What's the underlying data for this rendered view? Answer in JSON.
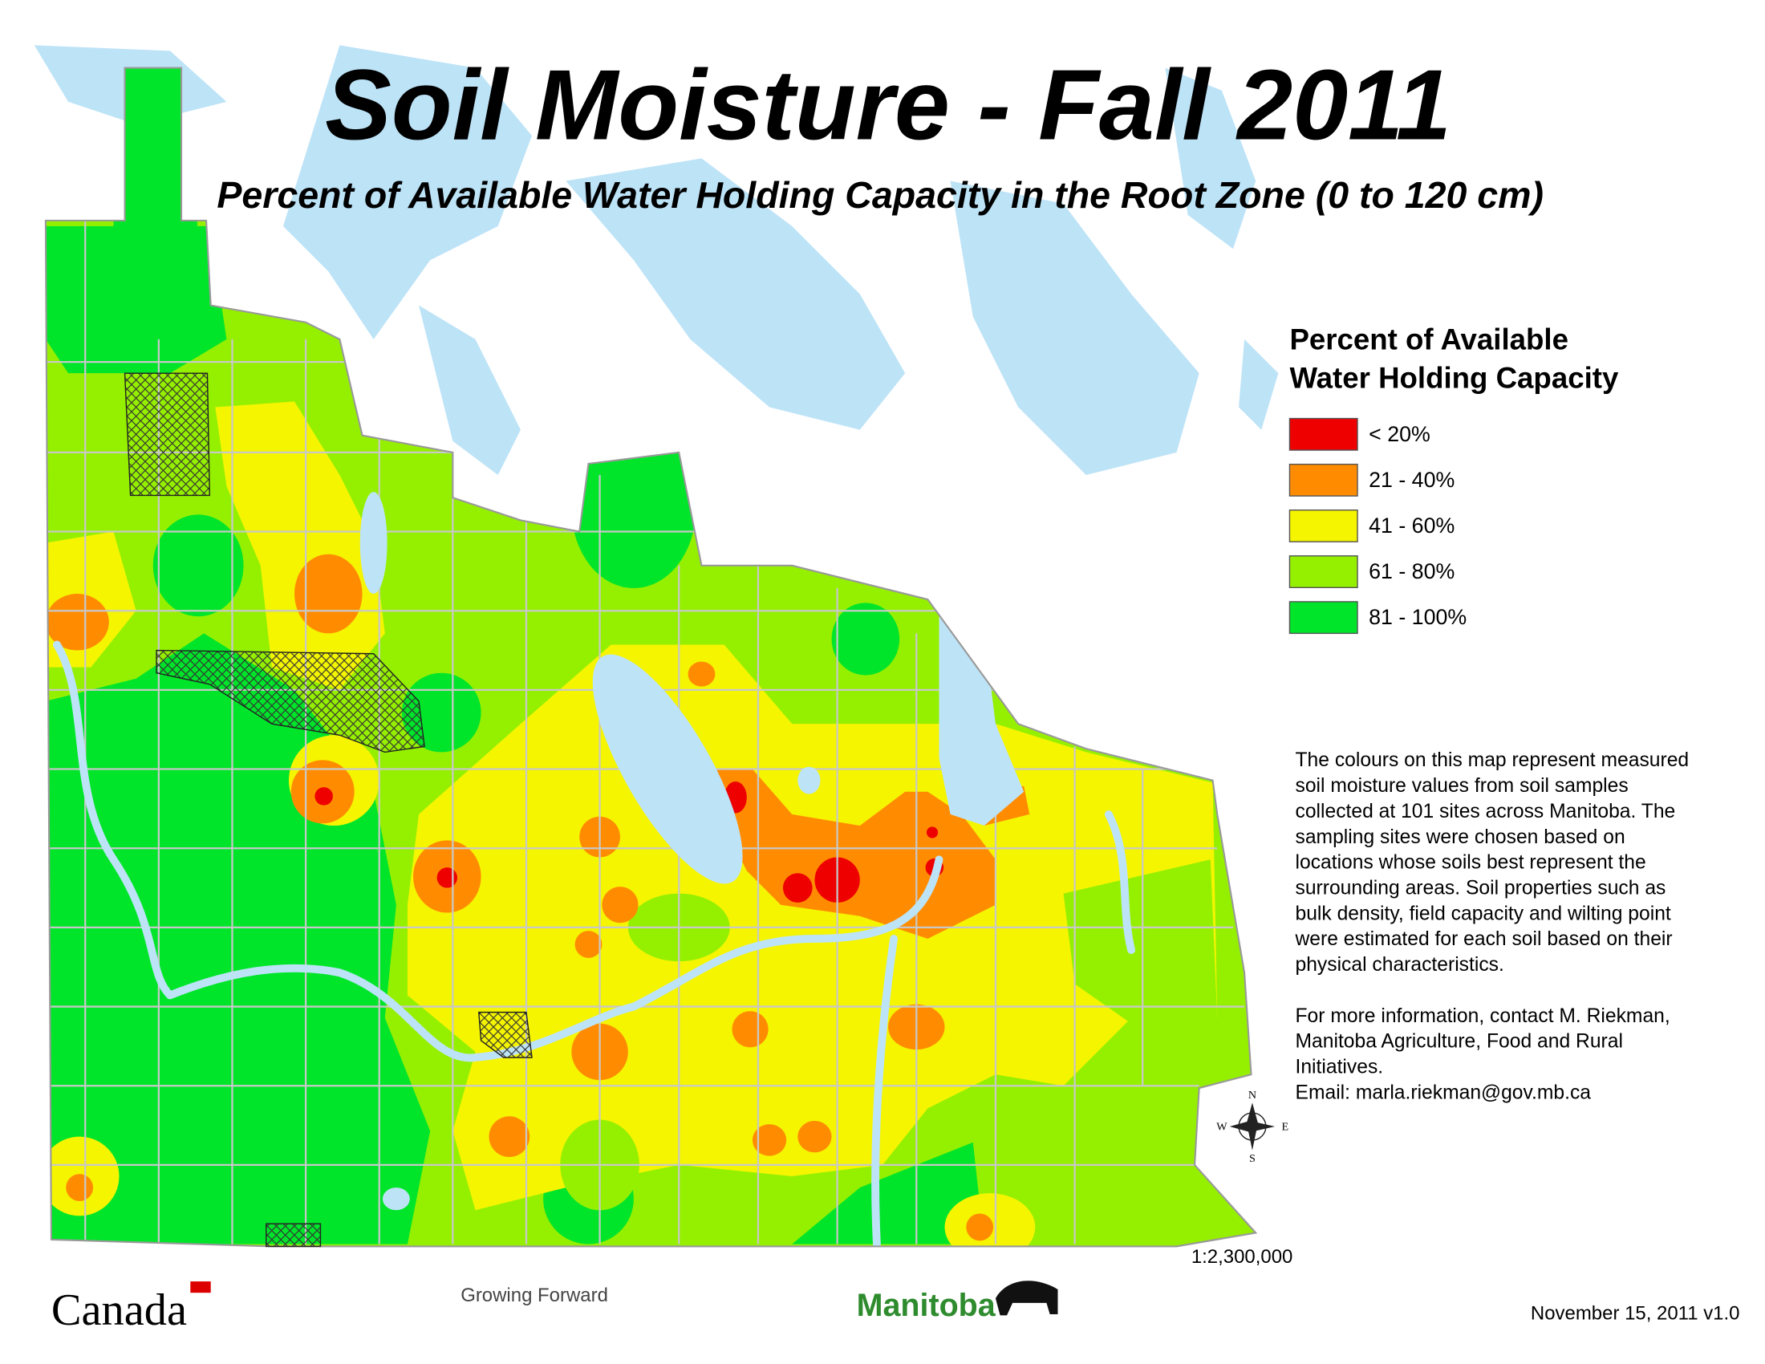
{
  "title": "Soil Moisture - Fall 2011",
  "subtitle": "Percent of Available Water Holding Capacity in the Root Zone (0 to 120 cm)",
  "legend": {
    "title": [
      "Percent of Available",
      "Water Holding Capacity"
    ],
    "items": [
      {
        "label": "< 20%",
        "color": "#ee0000"
      },
      {
        "label": "21 - 40%",
        "color": "#ff8c00"
      },
      {
        "label": "41 - 60%",
        "color": "#f5f500"
      },
      {
        "label": "61 - 80%",
        "color": "#95f000"
      },
      {
        "label": "81 - 100%",
        "color": "#00e52a"
      }
    ]
  },
  "description": [
    [
      "The colours on this map represent measured",
      "soil moisture values from soil samples",
      "collected at 101 sites across Manitoba.  The",
      "sampling sites were chosen based on",
      "locations whose soils best represent the",
      "surrounding areas.  Soil properties such as",
      "bulk density, field capacity and wilting point",
      "were estimated for each soil based on their",
      "physical characteristics."
    ],
    [
      "For more information, contact M. Riekman,",
      "Manitoba Agriculture, Food and Rural",
      "Initiatives.",
      "Email: marla.riekman@gov.mb.ca"
    ]
  ],
  "compass": {
    "n": "N",
    "s": "S",
    "e": "E",
    "w": "W"
  },
  "scale": "1:2,300,000",
  "logos": {
    "canada": "Canada",
    "growing_forward": "Growing Forward",
    "manitoba": "Manitoba"
  },
  "date": "November 15, 2011 v1.0"
}
